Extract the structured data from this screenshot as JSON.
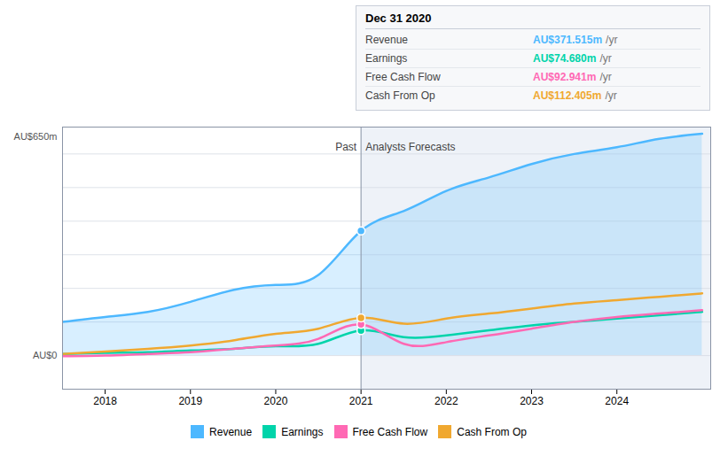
{
  "chart_data": {
    "type": "line",
    "x": [
      2017.5,
      2018.0,
      2018.5,
      2019.0,
      2019.5,
      2020.0,
      2020.5,
      2021.0,
      2021.5,
      2022.0,
      2022.5,
      2023.0,
      2023.5,
      2024.0,
      2024.5,
      2025.0
    ],
    "series": [
      {
        "name": "Revenue",
        "color": "#4db8ff",
        "type": "area",
        "values": [
          100,
          115,
          130,
          160,
          195,
          210,
          240,
          371,
          430,
          490,
          530,
          570,
          600,
          620,
          645,
          660
        ]
      },
      {
        "name": "Earnings",
        "color": "#00d4aa",
        "type": "line",
        "values": [
          5,
          8,
          10,
          15,
          20,
          28,
          35,
          74.68,
          55,
          60,
          75,
          90,
          100,
          110,
          120,
          130
        ]
      },
      {
        "name": "Free Cash Flow",
        "color": "#ff69b4",
        "type": "line",
        "values": [
          -2,
          0,
          5,
          10,
          20,
          30,
          50,
          92.941,
          35,
          40,
          60,
          80,
          100,
          115,
          125,
          135
        ]
      },
      {
        "name": "Cash From Op",
        "color": "#f0a830",
        "type": "line",
        "values": [
          5,
          12,
          20,
          30,
          45,
          65,
          80,
          112.405,
          95,
          110,
          125,
          140,
          155,
          165,
          175,
          185
        ]
      }
    ],
    "xlim": [
      2017.5,
      2025.1
    ],
    "xticks": [
      2018,
      2019,
      2020,
      2021,
      2022,
      2023,
      2024
    ],
    "ylim": [
      -100,
      680
    ],
    "yticks": [
      -100,
      0,
      100,
      200,
      300,
      400,
      500,
      600
    ],
    "grid": true,
    "tick_labels": "x",
    "legend": "bottom",
    "marker": "o",
    "divider": {
      "x": 2021.0,
      "y": 620,
      "left_label": "Past",
      "right_label": "Analysts Forecasts"
    },
    "annotations": [
      {
        "text": "AU$650m",
        "y": 650
      },
      {
        "text": "AU$0",
        "y": 0
      }
    ],
    "tooltip": {
      "title": "Dec 31 2020",
      "rows": [
        {
          "label": "Revenue",
          "value": "AU$371.515m",
          "unit": "/yr",
          "color": "#4db8ff"
        },
        {
          "label": "Earnings",
          "value": "AU$74.680m",
          "unit": "/yr",
          "color": "#00d4aa"
        },
        {
          "label": "Free Cash Flow",
          "value": "AU$92.941m",
          "unit": "/yr",
          "color": "#ff69b4"
        },
        {
          "label": "Cash From Op",
          "value": "AU$112.405m",
          "unit": "/yr",
          "color": "#f0a830"
        }
      ]
    }
  }
}
